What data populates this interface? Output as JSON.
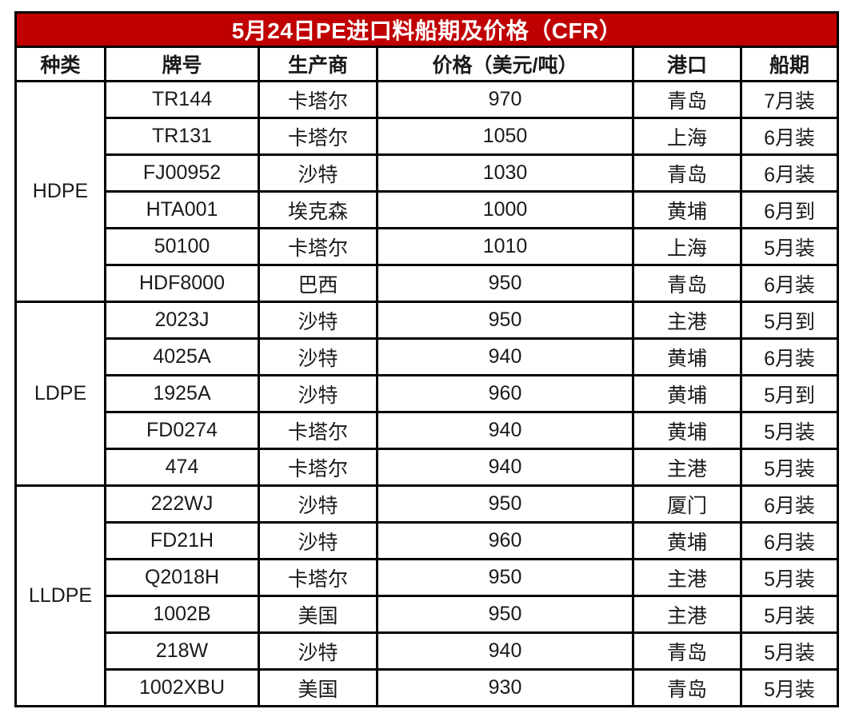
{
  "title": "5月24日PE进口料船期及价格（CFR）",
  "colors": {
    "title_background": "#C00000",
    "title_text": "#FFFFFF",
    "border": "#000000",
    "cell_background": "#FFFFFF"
  },
  "headers": {
    "type": "种类",
    "grade": "牌号",
    "producer": "生产商",
    "price": "价格（美元/吨）",
    "port": "港口",
    "schedule": "船期"
  },
  "groups": [
    {
      "type": "HDPE",
      "rows": [
        {
          "grade": "TR144",
          "producer": "卡塔尔",
          "price": "970",
          "port": "青岛",
          "schedule": "7月装"
        },
        {
          "grade": "TR131",
          "producer": "卡塔尔",
          "price": "1050",
          "port": "上海",
          "schedule": "6月装"
        },
        {
          "grade": "FJ00952",
          "producer": "沙特",
          "price": "1030",
          "port": "青岛",
          "schedule": "6月装"
        },
        {
          "grade": "HTA001",
          "producer": "埃克森",
          "price": "1000",
          "port": "黄埔",
          "schedule": "6月到"
        },
        {
          "grade": "50100",
          "producer": "卡塔尔",
          "price": "1010",
          "port": "上海",
          "schedule": "5月装"
        },
        {
          "grade": "HDF8000",
          "producer": "巴西",
          "price": "950",
          "port": "青岛",
          "schedule": "6月装"
        }
      ]
    },
    {
      "type": "LDPE",
      "rows": [
        {
          "grade": "2023J",
          "producer": "沙特",
          "price": "950",
          "port": "主港",
          "schedule": "5月到"
        },
        {
          "grade": "4025A",
          "producer": "沙特",
          "price": "940",
          "port": "黄埔",
          "schedule": "6月装"
        },
        {
          "grade": "1925A",
          "producer": "沙特",
          "price": "960",
          "port": "黄埔",
          "schedule": "5月到"
        },
        {
          "grade": "FD0274",
          "producer": "卡塔尔",
          "price": "940",
          "port": "黄埔",
          "schedule": "5月装"
        },
        {
          "grade": "474",
          "producer": "卡塔尔",
          "price": "940",
          "port": "主港",
          "schedule": "5月装"
        }
      ]
    },
    {
      "type": "LLDPE",
      "rows": [
        {
          "grade": "222WJ",
          "producer": "沙特",
          "price": "950",
          "port": "厦门",
          "schedule": "6月装"
        },
        {
          "grade": "FD21H",
          "producer": "沙特",
          "price": "960",
          "port": "黄埔",
          "schedule": "6月装"
        },
        {
          "grade": "Q2018H",
          "producer": "卡塔尔",
          "price": "950",
          "port": "主港",
          "schedule": "5月装"
        },
        {
          "grade": "1002B",
          "producer": "美国",
          "price": "950",
          "port": "主港",
          "schedule": "5月装"
        },
        {
          "grade": "218W",
          "producer": "沙特",
          "price": "940",
          "port": "青岛",
          "schedule": "5月装"
        },
        {
          "grade": "1002XBU",
          "producer": "美国",
          "price": "930",
          "port": "青岛",
          "schedule": "5月装"
        }
      ]
    }
  ],
  "chart_data": {
    "type": "table",
    "title": "5月24日PE进口料船期及价格（CFR）",
    "columns": [
      "种类",
      "牌号",
      "生产商",
      "价格（美元/吨）",
      "港口",
      "船期"
    ],
    "rows": [
      [
        "HDPE",
        "TR144",
        "卡塔尔",
        "970",
        "青岛",
        "7月装"
      ],
      [
        "HDPE",
        "TR131",
        "卡塔尔",
        "1050",
        "上海",
        "6月装"
      ],
      [
        "HDPE",
        "FJ00952",
        "沙特",
        "1030",
        "青岛",
        "6月装"
      ],
      [
        "HDPE",
        "HTA001",
        "埃克森",
        "1000",
        "黄埔",
        "6月到"
      ],
      [
        "HDPE",
        "50100",
        "卡塔尔",
        "1010",
        "上海",
        "5月装"
      ],
      [
        "HDPE",
        "HDF8000",
        "巴西",
        "950",
        "青岛",
        "6月装"
      ],
      [
        "LDPE",
        "2023J",
        "沙特",
        "950",
        "主港",
        "5月到"
      ],
      [
        "LDPE",
        "4025A",
        "沙特",
        "940",
        "黄埔",
        "6月装"
      ],
      [
        "LDPE",
        "1925A",
        "沙特",
        "960",
        "黄埔",
        "5月到"
      ],
      [
        "LDPE",
        "FD0274",
        "卡塔尔",
        "940",
        "黄埔",
        "5月装"
      ],
      [
        "LDPE",
        "474",
        "卡塔尔",
        "940",
        "主港",
        "5月装"
      ],
      [
        "LLDPE",
        "222WJ",
        "沙特",
        "950",
        "厦门",
        "6月装"
      ],
      [
        "LLDPE",
        "FD21H",
        "沙特",
        "960",
        "黄埔",
        "6月装"
      ],
      [
        "LLDPE",
        "Q2018H",
        "卡塔尔",
        "950",
        "主港",
        "5月装"
      ],
      [
        "LLDPE",
        "1002B",
        "美国",
        "950",
        "主港",
        "5月装"
      ],
      [
        "LLDPE",
        "218W",
        "沙特",
        "940",
        "青岛",
        "5月装"
      ],
      [
        "LLDPE",
        "1002XBU",
        "美国",
        "930",
        "青岛",
        "5月装"
      ]
    ],
    "legend_position": "none",
    "grid": true
  }
}
